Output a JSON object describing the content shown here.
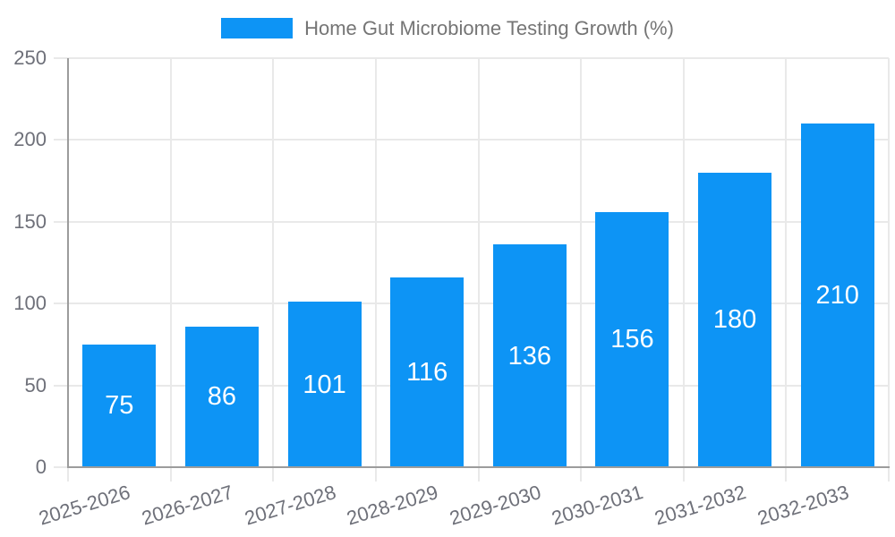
{
  "legend": {
    "label": "Home Gut Microbiome Testing Growth (%)"
  },
  "chart_data": {
    "type": "bar",
    "title": "Home Gut Microbiome Testing Growth (%)",
    "categories": [
      "2025-2026",
      "2026-2027",
      "2027-2028",
      "2028-2029",
      "2029-2030",
      "2030-2031",
      "2031-2032",
      "2032-2033"
    ],
    "values": [
      75,
      86,
      101,
      116,
      136,
      156,
      180,
      210
    ],
    "xlabel": "",
    "ylabel": "",
    "ylim": [
      0,
      250
    ],
    "yticks": [
      0,
      50,
      100,
      150,
      200,
      250
    ],
    "grid": true,
    "legend_position": "top",
    "bar_value_labels_inside": true,
    "colors": {
      "bar": "#0D94F5",
      "bar_label": "#FFFFFF",
      "axis_text": "#6E7079",
      "legend_text": "#757575",
      "grid_line": "#E9E9E9",
      "axis_line": "#9C9C9C"
    }
  }
}
